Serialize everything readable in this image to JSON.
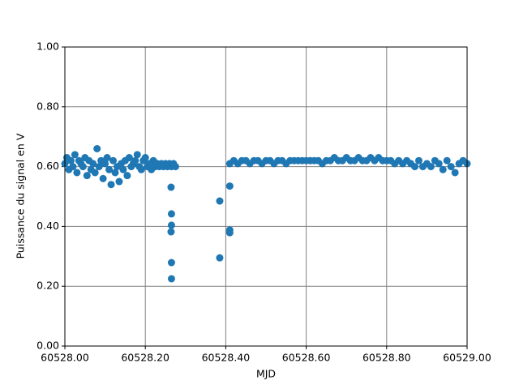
{
  "chart_data": {
    "type": "scatter",
    "xlabel": "MJD",
    "ylabel": "Puissance du signal en V",
    "xlim": [
      60528.0,
      60529.0
    ],
    "xticks": [
      {
        "value": 60528.0,
        "label": "60528.00"
      },
      {
        "value": 60528.2,
        "label": "60528.20"
      },
      {
        "value": 60528.4,
        "label": "60528.40"
      },
      {
        "value": 60528.6,
        "label": "60528.60"
      },
      {
        "value": 60528.8,
        "label": "60528.80"
      },
      {
        "value": 60529.0,
        "label": "60529.00"
      }
    ],
    "ylim": [
      0,
      1
    ],
    "yticks": [
      {
        "value": 0,
        "label": "0.00"
      },
      {
        "value": 0.2,
        "label": "0.20"
      },
      {
        "value": 0.4,
        "label": "0.40"
      },
      {
        "value": 0.6,
        "label": "0.60"
      },
      {
        "value": 0.8,
        "label": "0.80"
      },
      {
        "value": 1,
        "label": "1.00"
      }
    ],
    "grid": true,
    "series": [
      {
        "color": "#1f77b4",
        "x": [
          60528.0,
          60528.005,
          60528.01,
          60528.015,
          60528.02,
          60528.025,
          60528.03,
          60528.035,
          60528.04,
          60528.045,
          60528.05,
          60528.055,
          60528.06,
          60528.065,
          60528.07,
          60528.075,
          60528.08,
          60528.085,
          60528.09,
          60528.095,
          60528.1,
          60528.105,
          60528.11,
          60528.115,
          60528.12,
          60528.125,
          60528.13,
          60528.135,
          60528.14,
          60528.145,
          60528.15,
          60528.155,
          60528.16,
          60528.165,
          60528.17,
          60528.175,
          60528.18,
          60528.185,
          60528.19,
          60528.195,
          60528.2,
          60528.205,
          60528.21,
          60528.215,
          60528.22,
          60528.225,
          60528.23,
          60528.235,
          60528.24,
          60528.245,
          60528.25,
          60528.255,
          60528.26,
          60528.265,
          60528.27,
          60528.275,
          60528.264,
          60528.265,
          60528.265,
          60528.264,
          60528.265,
          60528.265,
          60528.385,
          60528.385,
          60528.41,
          60528.41,
          60528.41,
          60528.41,
          60528.42,
          60528.43,
          60528.44,
          60528.45,
          60528.46,
          60528.47,
          60528.48,
          60528.49,
          60528.5,
          60528.51,
          60528.52,
          60528.53,
          60528.54,
          60528.55,
          60528.56,
          60528.57,
          60528.58,
          60528.59,
          60528.6,
          60528.61,
          60528.62,
          60528.63,
          60528.64,
          60528.65,
          60528.66,
          60528.67,
          60528.68,
          60528.69,
          60528.7,
          60528.71,
          60528.72,
          60528.73,
          60528.74,
          60528.75,
          60528.76,
          60528.77,
          60528.78,
          60528.79,
          60528.8,
          60528.81,
          60528.82,
          60528.83,
          60528.84,
          60528.85,
          60528.86,
          60528.87,
          60528.88,
          60528.89,
          60528.9,
          60528.91,
          60528.92,
          60528.93,
          60528.94,
          60528.95,
          60528.96,
          60528.97,
          60528.98,
          60528.99,
          60529.0
        ],
        "values": [
          0.61,
          0.63,
          0.59,
          0.62,
          0.6,
          0.64,
          0.58,
          0.62,
          0.61,
          0.6,
          0.63,
          0.57,
          0.62,
          0.59,
          0.61,
          0.58,
          0.66,
          0.6,
          0.62,
          0.56,
          0.61,
          0.63,
          0.59,
          0.54,
          0.62,
          0.58,
          0.6,
          0.55,
          0.61,
          0.59,
          0.62,
          0.57,
          0.63,
          0.6,
          0.61,
          0.62,
          0.64,
          0.6,
          0.59,
          0.62,
          0.63,
          0.6,
          0.61,
          0.59,
          0.62,
          0.6,
          0.61,
          0.6,
          0.61,
          0.6,
          0.61,
          0.6,
          0.61,
          0.6,
          0.61,
          0.6,
          0.531,
          0.442,
          0.404,
          0.382,
          0.279,
          0.225,
          0.485,
          0.295,
          0.535,
          0.388,
          0.379,
          0.61,
          0.62,
          0.61,
          0.62,
          0.62,
          0.61,
          0.62,
          0.62,
          0.61,
          0.62,
          0.62,
          0.61,
          0.62,
          0.62,
          0.61,
          0.62,
          0.62,
          0.62,
          0.62,
          0.62,
          0.62,
          0.62,
          0.62,
          0.61,
          0.62,
          0.62,
          0.63,
          0.62,
          0.62,
          0.63,
          0.62,
          0.62,
          0.63,
          0.62,
          0.62,
          0.63,
          0.62,
          0.63,
          0.62,
          0.62,
          0.62,
          0.61,
          0.62,
          0.61,
          0.62,
          0.61,
          0.6,
          0.62,
          0.6,
          0.61,
          0.6,
          0.62,
          0.61,
          0.59,
          0.62,
          0.6,
          0.58,
          0.61,
          0.62,
          0.61
        ]
      }
    ]
  }
}
